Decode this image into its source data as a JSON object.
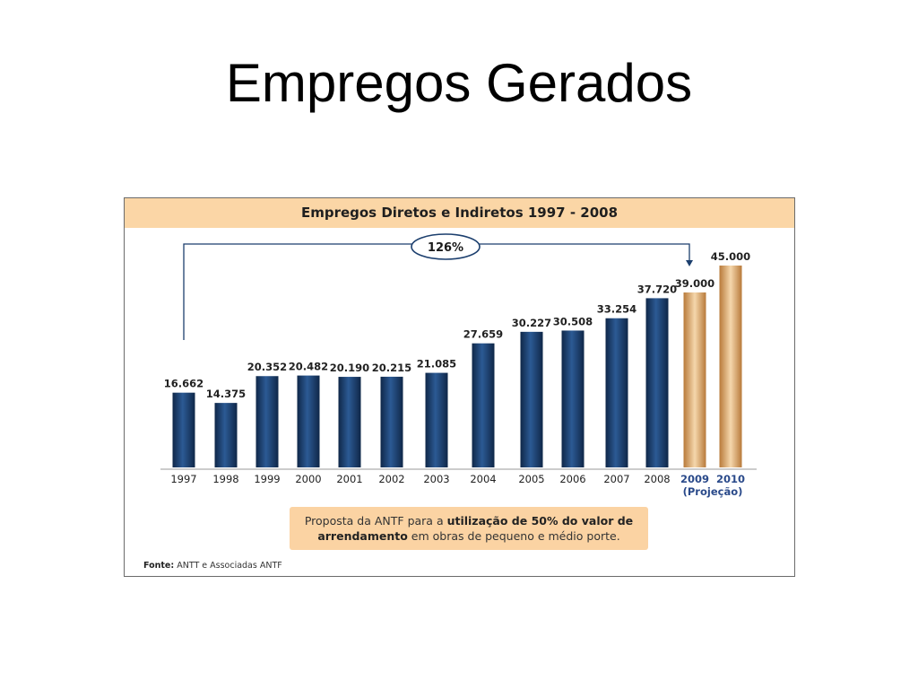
{
  "slide": {
    "title": "Empregos Gerados"
  },
  "chart_data": {
    "type": "bar",
    "title": "Empregos Diretos e Indiretos  1997 - 2008",
    "categories": [
      "1997",
      "1998",
      "1999",
      "2000",
      "2001",
      "2002",
      "2003",
      "2004",
      "2005",
      "2006",
      "2007",
      "2008",
      "2009",
      "2010"
    ],
    "values": [
      16662,
      14375,
      20352,
      20482,
      20190,
      20215,
      21085,
      27659,
      30227,
      30508,
      33254,
      37720,
      39000,
      45000
    ],
    "value_labels": [
      "16.662",
      "14.375",
      "20.352",
      "20.482",
      "20.190",
      "20.215",
      "21.085",
      "27.659",
      "30.227",
      "30.508",
      "33.254",
      "37.720",
      "39.000",
      "45.000"
    ],
    "projected_from": "2009",
    "projection_label": "(Projeção)",
    "growth_annotation": "126%",
    "colors": {
      "actual": "#1c3f6e",
      "projected": "#d9a05c",
      "header": "#fbd6a6",
      "projected_label": "#2a4a8a"
    },
    "grid": false,
    "legend": "none"
  },
  "note": {
    "text_1": "Proposta da ANTF para a ",
    "bold_1": "utilização de 50% do valor de arrendamento",
    "text_2": " em obras de pequeno e médio porte."
  },
  "source": {
    "label": "Fonte:",
    "text": " ANTT e Associadas ANTF"
  }
}
